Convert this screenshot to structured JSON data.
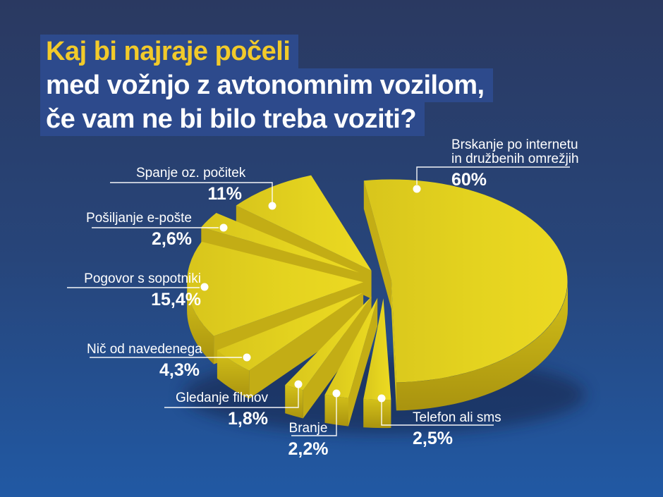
{
  "title": {
    "line1": "Kaj bi najraje počeli",
    "line2": "med vožnjo z avtonomnim vozilom,",
    "line3": "če vam ne bi bilo treba voziti?"
  },
  "chart_data": {
    "type": "pie",
    "title": "Kaj bi najraje počeli med vožnjo z avtonomnim vozilom, če vam ne bi bilo treba voziti?",
    "value_suffix": "%",
    "style": "3d-exploded-pie",
    "legend_position": "callouts",
    "slices": [
      {
        "label": "Brskanje po internetu\nin družbenih omrežjih",
        "value": 60,
        "display": "60%"
      },
      {
        "label": "Telefon ali sms",
        "value": 2.5,
        "display": "2,5%"
      },
      {
        "label": "Branje",
        "value": 2.2,
        "display": "2,2%"
      },
      {
        "label": "Gledanje filmov",
        "value": 1.8,
        "display": "1,8%"
      },
      {
        "label": "Nič od navedenega",
        "value": 4.3,
        "display": "4,3%"
      },
      {
        "label": "Pogovor s sopotniki",
        "value": 15.4,
        "display": "15,4%"
      },
      {
        "label": "Pošiljanje e-pošte",
        "value": 2.6,
        "display": "2,6%"
      },
      {
        "label": "Spanje oz. počitek",
        "value": 11,
        "display": "11%"
      }
    ],
    "colors": {
      "pie_top_light": "#ecd922",
      "pie_top_dark": "#d8c51c",
      "pie_rim_light": "#d4c119",
      "pie_rim_dark": "#a9930f",
      "pie_wall_shaded": "#c3ad15",
      "pie_wall_lit": "#d9c61c",
      "background_top": "#2a3961",
      "background_bottom": "#2159a4",
      "title_highlight": "#2d4a8c",
      "title_accent": "#f2ca2a",
      "text": "#ffffff"
    }
  }
}
